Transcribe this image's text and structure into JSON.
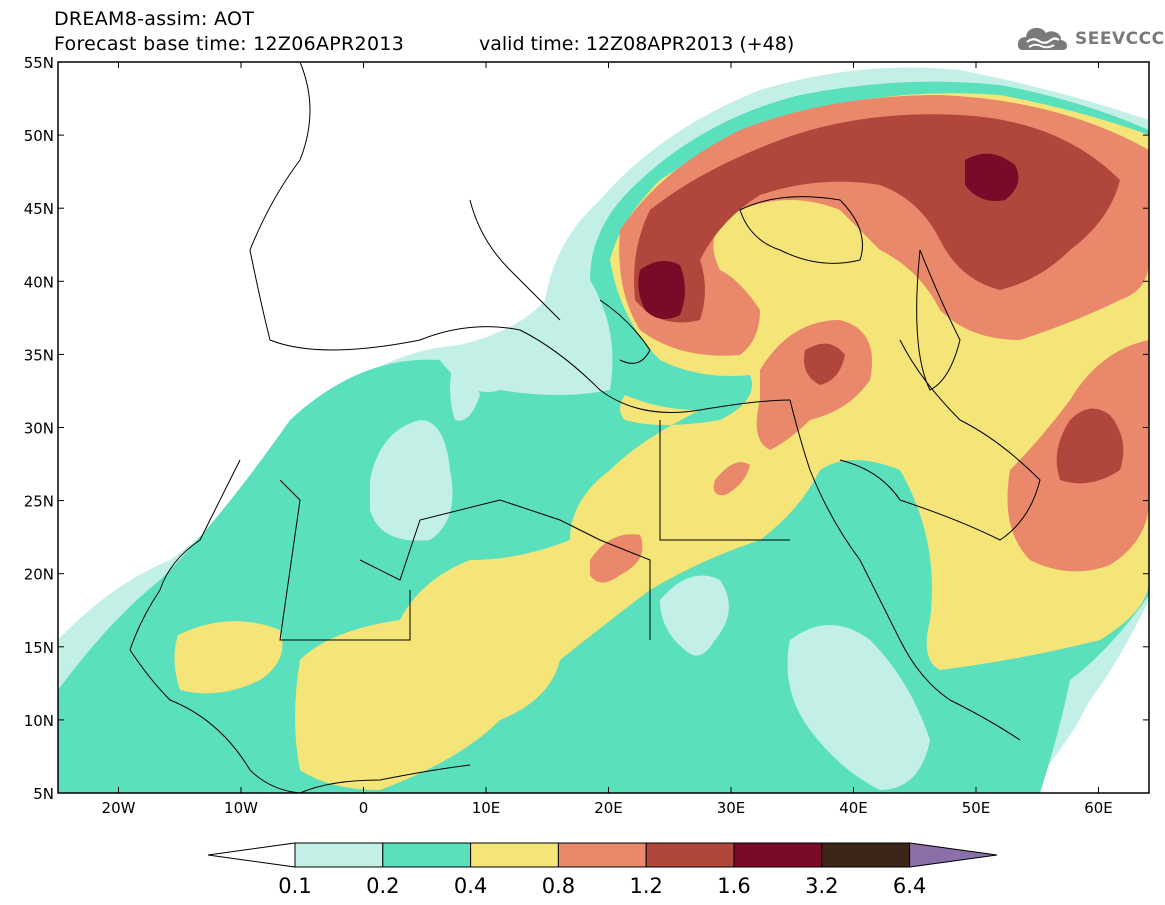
{
  "header": {
    "line1": "DREAM8-assim: AOT",
    "line2": "Forecast base time: 12Z06APR2013",
    "valid": "valid time: 12Z08APR2013 (+48)"
  },
  "logo": {
    "text": "SEEVCCC",
    "icon": "cloud-icon"
  },
  "map": {
    "lat_labels": [
      "55N",
      "50N",
      "45N",
      "40N",
      "35N",
      "30N",
      "25N",
      "20N",
      "15N",
      "10N",
      "5N"
    ],
    "lon_labels": [
      "20W",
      "10W",
      "0",
      "10E",
      "20E",
      "30E",
      "40E",
      "50E",
      "60E"
    ]
  },
  "colorbar": {
    "labels": [
      "0.1",
      "0.2",
      "0.4",
      "0.8",
      "1.2",
      "1.6",
      "3.2",
      "6.4"
    ],
    "colors": [
      "#ffffff",
      "#c2f0e6",
      "#5be0bd",
      "#f5e477",
      "#e9886a",
      "#b0463c",
      "#7a0a28",
      "#3d2617",
      "#8a6fa8"
    ]
  }
}
